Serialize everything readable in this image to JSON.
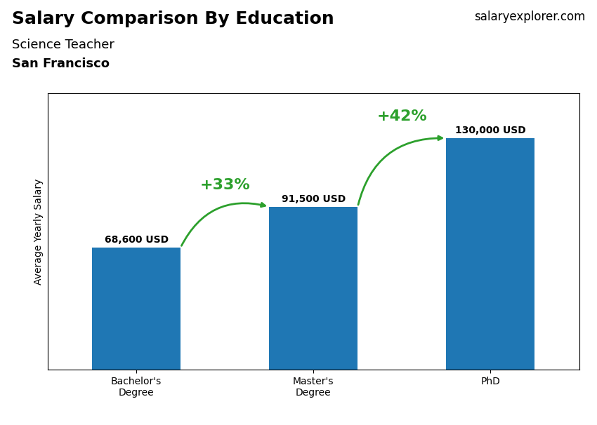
{
  "chart_data": {
    "type": "bar",
    "title": "Salary Comparison By Education",
    "subtitle": "Science Teacher",
    "annotations": [
      "San Francisco",
      "salaryexplorer.com"
    ],
    "ylabel": "Average Yearly Salary",
    "categories": [
      "Bachelor's\nDegree",
      "Master's\nDegree",
      "PhD"
    ],
    "values": [
      68600,
      91500,
      130000
    ],
    "value_labels": [
      "68,600 USD",
      "91,500 USD",
      "130,000 USD"
    ],
    "data_labels": true,
    "change_labels": [
      "+33%",
      "+42%"
    ],
    "ylim": [
      0,
      155000
    ],
    "yticks": [],
    "tick_labels": "x",
    "grid": false
  }
}
